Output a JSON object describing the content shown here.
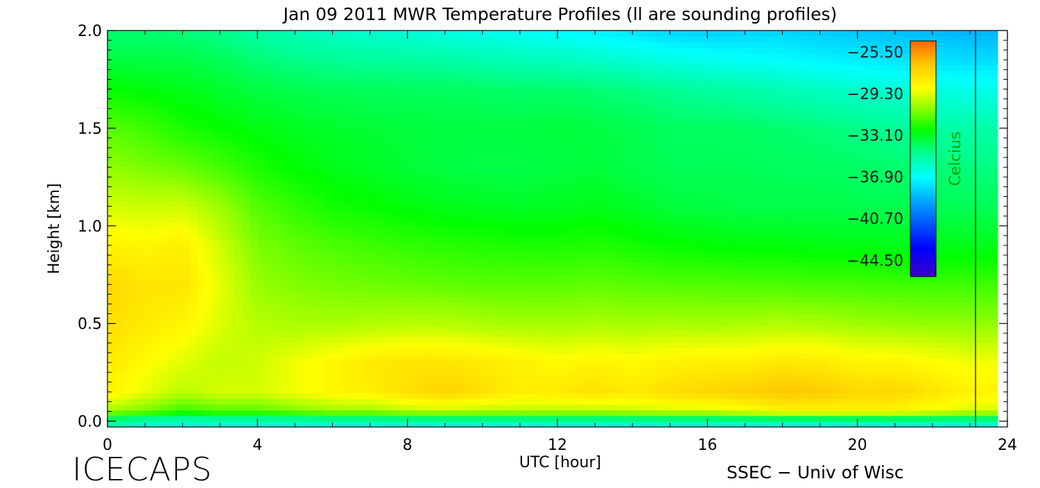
{
  "chart_data": {
    "type": "heatmap",
    "title": "Jan 09 2011 MWR Temperature Profiles (ll are sounding profiles)",
    "xlabel": "UTC [hour]",
    "ylabel": "Height [km]",
    "xlim": [
      0,
      24
    ],
    "ylim": [
      -0.03,
      2.0
    ],
    "x_ticks": [
      "0",
      "4",
      "8",
      "12",
      "16",
      "20",
      "24"
    ],
    "y_ticks": [
      "0.0",
      "0.5",
      "1.0",
      "1.5",
      "2.0"
    ],
    "colorbar": {
      "label": "Celcius",
      "range": [
        -46.0,
        -24.5
      ],
      "tick_labels": [
        "−25.50",
        "−29.30",
        "−33.10",
        "−36.90",
        "−40.70",
        "−44.50"
      ],
      "colors": [
        "#3a00c8",
        "#0000ff",
        "#0096ff",
        "#00ffff",
        "#00ff96",
        "#00ff00",
        "#96ff00",
        "#ffff00",
        "#ffc800",
        "#ff6400"
      ]
    },
    "grid": false,
    "data_end_hour": 23.2,
    "sounding_markers_hours": [
      23.2
    ],
    "times_hour": [
      0,
      1,
      2,
      3,
      4,
      5,
      6,
      7,
      8,
      9,
      10,
      11,
      12,
      13,
      14,
      15,
      16,
      17,
      18,
      19,
      20,
      21,
      22,
      23
    ],
    "heights_km": [
      0.0,
      0.05,
      0.15,
      0.3,
      0.5,
      0.7,
      0.9,
      1.1,
      1.3,
      1.5,
      1.7,
      1.85,
      2.0
    ],
    "temperature_c": [
      [
        -35,
        -36,
        -36,
        -36,
        -36,
        -36,
        -36,
        -36,
        -36,
        -36,
        -36,
        -36,
        -36,
        -36,
        -36,
        -36,
        -36,
        -36,
        -36,
        -36,
        -36,
        -36,
        -36,
        -36
      ],
      [
        -30.5,
        -31,
        -32,
        -31.5,
        -31.5,
        -31,
        -30.5,
        -30.5,
        -30,
        -29.8,
        -30,
        -30,
        -30,
        -30,
        -29.8,
        -29.5,
        -29.5,
        -29,
        -28.5,
        -28.5,
        -28.5,
        -28.5,
        -29,
        -29.5
      ],
      [
        -28.3,
        -29.2,
        -30,
        -29.5,
        -29.5,
        -29,
        -28.5,
        -28.2,
        -27.6,
        -27.1,
        -27.6,
        -28.2,
        -28,
        -27.6,
        -28,
        -27.5,
        -27.2,
        -27,
        -26.6,
        -26.8,
        -27.3,
        -27.2,
        -27.8,
        -28.3
      ],
      [
        -28.0,
        -28.7,
        -29.3,
        -29.8,
        -29.6,
        -29,
        -28.5,
        -28,
        -27.8,
        -27.8,
        -28,
        -28.3,
        -28.6,
        -28.4,
        -28.6,
        -28.3,
        -28.2,
        -28.2,
        -27.9,
        -28,
        -28.4,
        -28.4,
        -28.7,
        -29.0
      ],
      [
        -27.5,
        -28.0,
        -28.4,
        -29.4,
        -30,
        -30.2,
        -30.2,
        -30.1,
        -30,
        -30,
        -30.2,
        -30.3,
        -30.3,
        -30.2,
        -30.3,
        -30.2,
        -30.3,
        -30.2,
        -30.1,
        -30.2,
        -30.4,
        -30.5,
        -30.6,
        -30.6
      ],
      [
        -27.3,
        -27.8,
        -27.8,
        -29.2,
        -30.5,
        -30.8,
        -31,
        -31.1,
        -31.2,
        -31.3,
        -31.4,
        -31.4,
        -31.4,
        -31.3,
        -31.4,
        -31.5,
        -31.5,
        -31.6,
        -31.6,
        -31.7,
        -31.7,
        -31.8,
        -31.8,
        -31.8
      ],
      [
        -28.3,
        -28.5,
        -28.2,
        -29.6,
        -30.9,
        -31.3,
        -31.6,
        -31.8,
        -32,
        -32.1,
        -32.2,
        -32.3,
        -32.3,
        -32.2,
        -32.4,
        -32.6,
        -32.7,
        -32.8,
        -32.8,
        -32.9,
        -32.9,
        -33.0,
        -33.0,
        -33.0
      ],
      [
        -29.5,
        -29.7,
        -29.6,
        -30.4,
        -31.5,
        -32,
        -32.4,
        -32.6,
        -32.8,
        -33,
        -33.1,
        -33.2,
        -33.1,
        -33.0,
        -33.2,
        -33.5,
        -33.6,
        -33.7,
        -33.7,
        -33.7,
        -33.8,
        -33.8,
        -33.8,
        -33.9
      ],
      [
        -30.6,
        -30.9,
        -31.2,
        -31.7,
        -32.3,
        -32.7,
        -33.0,
        -33.2,
        -33.4,
        -33.6,
        -33.7,
        -33.7,
        -33.6,
        -33.5,
        -33.7,
        -33.9,
        -33.9,
        -33.9,
        -34.0,
        -34.0,
        -34.1,
        -34.2,
        -34.3,
        -34.5
      ],
      [
        -31.4,
        -31.8,
        -32.3,
        -32.6,
        -32.9,
        -33.1,
        -33.3,
        -33.4,
        -33.5,
        -33.6,
        -33.6,
        -33.6,
        -33.5,
        -33.6,
        -33.8,
        -34.0,
        -34.0,
        -34.1,
        -34.2,
        -34.4,
        -34.6,
        -34.8,
        -35.0,
        -35.2
      ],
      [
        -32.6,
        -32.8,
        -33.0,
        -33.3,
        -33.6,
        -33.8,
        -33.9,
        -34.0,
        -34.0,
        -34.0,
        -34.1,
        -34.2,
        -34.2,
        -34.3,
        -34.5,
        -34.8,
        -35.0,
        -35.2,
        -35.4,
        -35.7,
        -35.9,
        -36.1,
        -36.3,
        -36.5
      ],
      [
        -33.6,
        -33.6,
        -33.6,
        -33.9,
        -34.3,
        -34.6,
        -34.8,
        -34.9,
        -35.0,
        -35.1,
        -35.3,
        -35.5,
        -35.6,
        -35.8,
        -36.1,
        -36.4,
        -36.6,
        -36.8,
        -37.0,
        -37.2,
        -37.4,
        -37.6,
        -37.7,
        -37.8
      ],
      [
        -34.3,
        -34.3,
        -34.4,
        -34.7,
        -35.1,
        -35.5,
        -35.8,
        -36.0,
        -36.2,
        -36.4,
        -36.6,
        -36.8,
        -37.0,
        -37.3,
        -37.6,
        -38.0,
        -38.1,
        -38.0,
        -38.0,
        -38.2,
        -38.4,
        -38.5,
        -38.7,
        -38.8
      ]
    ]
  },
  "footer": {
    "logo_text": "ICECAPS",
    "credit_text": "SSEC − Univ of Wisc"
  }
}
